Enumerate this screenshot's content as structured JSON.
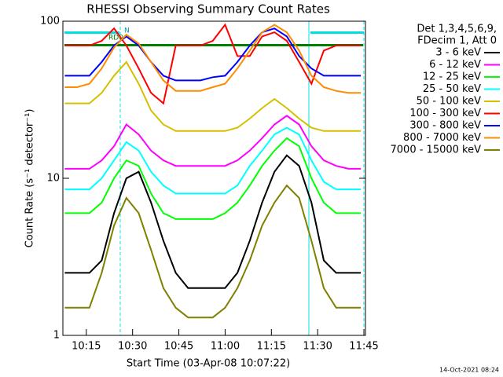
{
  "chart_data": {
    "type": "line",
    "title": "RHESSI Observing Summary Count Rates",
    "x_label": "Start Time (03-Apr-08 10:07:22)",
    "y_label": "Count Rate (s⁻¹ detector⁻¹)",
    "legend_header": [
      "Det 1,3,4,5,6,9,",
      "FDecim 1, Att 0"
    ],
    "footer": "14-Oct-2021 08:24",
    "annotations": [
      "RD0",
      "N"
    ],
    "log_scale": true,
    "legend": "right",
    "xlim": [
      7.4,
      105.5
    ],
    "ylim": [
      1,
      100
    ],
    "xticks": [
      {
        "value": 15,
        "label": "10:15"
      },
      {
        "value": 30,
        "label": "10:30"
      },
      {
        "value": 45,
        "label": "10:45"
      },
      {
        "value": 60,
        "label": "11:00"
      },
      {
        "value": 75,
        "label": "11:15"
      },
      {
        "value": 90,
        "label": "11:30"
      },
      {
        "value": 105,
        "label": "11:45"
      }
    ],
    "yticks": [
      1,
      10,
      100
    ],
    "x": [
      8,
      12,
      16,
      20,
      24,
      28,
      32,
      36,
      40,
      44,
      48,
      52,
      56,
      60,
      64,
      68,
      72,
      76,
      80,
      84,
      88,
      92,
      96,
      100,
      104
    ],
    "series": [
      {
        "name": "3 - 6 keV",
        "color": "#000000",
        "values": [
          2.5,
          2.5,
          2.5,
          3,
          6,
          10,
          11,
          7,
          4,
          2.5,
          2,
          2,
          2,
          2,
          2.5,
          4,
          7,
          11,
          14,
          12,
          7,
          3,
          2.5,
          2.5,
          2.5
        ]
      },
      {
        "name": "6 - 12 keV",
        "color": "#ff00ff",
        "values": [
          11.5,
          11.5,
          11.5,
          13,
          16,
          22,
          19,
          15,
          13,
          12,
          12,
          12,
          12,
          12,
          13,
          15,
          18,
          22,
          25,
          22,
          16,
          13,
          12,
          11.5,
          11.5
        ]
      },
      {
        "name": "12 - 25 keV",
        "color": "#00ff00",
        "values": [
          6,
          6,
          6,
          7,
          10,
          13,
          12,
          8,
          6,
          5.5,
          5.5,
          5.5,
          5.5,
          6,
          7,
          9,
          12,
          15,
          18,
          16,
          10,
          7,
          6,
          6,
          6
        ]
      },
      {
        "name": "25 - 50 keV",
        "color": "#00ffff",
        "values": [
          8.5,
          8.5,
          8.5,
          10,
          13,
          17,
          15,
          11,
          9,
          8,
          8,
          8,
          8,
          8,
          9,
          12,
          15,
          19,
          21,
          19,
          13,
          9.5,
          8.5,
          8.5,
          8.5
        ]
      },
      {
        "name": "50 - 100 keV",
        "color": "#d4c000",
        "values": [
          30,
          30,
          30,
          35,
          45,
          55,
          40,
          27,
          22,
          20,
          20,
          20,
          20,
          20,
          21,
          24,
          28,
          32,
          28,
          24,
          21,
          20,
          20,
          20,
          20
        ]
      },
      {
        "name": "100 - 300 keV",
        "color": "#ff0000",
        "values": [
          70,
          70,
          70,
          75,
          90,
          70,
          50,
          35,
          30,
          70,
          70,
          70,
          75,
          95,
          60,
          60,
          80,
          85,
          75,
          55,
          40,
          65,
          70,
          70,
          70
        ]
      },
      {
        "name": "300 - 800 keV",
        "color": "#0000ff",
        "values": [
          45,
          45,
          45,
          55,
          70,
          80,
          70,
          55,
          45,
          42,
          42,
          42,
          44,
          45,
          55,
          70,
          85,
          90,
          80,
          60,
          50,
          45,
          45,
          45,
          45
        ]
      },
      {
        "name": "800 - 7000 keV",
        "color": "#ff8c00",
        "values": [
          38,
          38,
          40,
          50,
          68,
          82,
          72,
          55,
          42,
          36,
          36,
          36,
          38,
          40,
          50,
          65,
          85,
          95,
          85,
          65,
          45,
          38,
          36,
          35,
          35
        ]
      },
      {
        "name": "7000 - 15000 keV",
        "color": "#808000",
        "values": [
          1.5,
          1.5,
          1.5,
          2.5,
          5,
          7.5,
          6,
          3.5,
          2,
          1.5,
          1.3,
          1.3,
          1.3,
          1.5,
          2,
          3,
          5,
          7,
          9,
          7.5,
          4,
          2,
          1.5,
          1.5,
          1.5
        ]
      }
    ]
  }
}
